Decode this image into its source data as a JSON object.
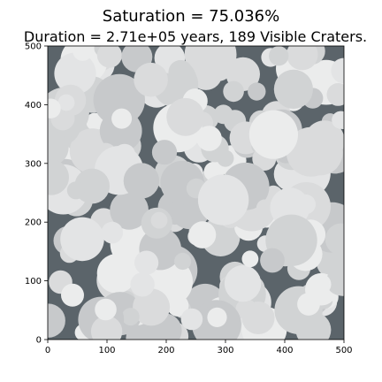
{
  "chart_data": {
    "type": "scatter",
    "title": "Saturation = 75.036%",
    "subtitle": "Duration = 2.71e+05 years, 189 Visible Craters.",
    "xlim": [
      0,
      500
    ],
    "ylim": [
      0,
      500
    ],
    "xticks": [
      "0",
      "100",
      "200",
      "300",
      "400",
      "500"
    ],
    "yticks": [
      "0",
      "100",
      "200",
      "300",
      "400",
      "500"
    ],
    "grid": false,
    "background_color": "#5b646a",
    "crater_colors": [
      "#c7c9cb",
      "#d1d3d4",
      "#dadbdc",
      "#e3e4e5",
      "#ebecec"
    ]
  }
}
